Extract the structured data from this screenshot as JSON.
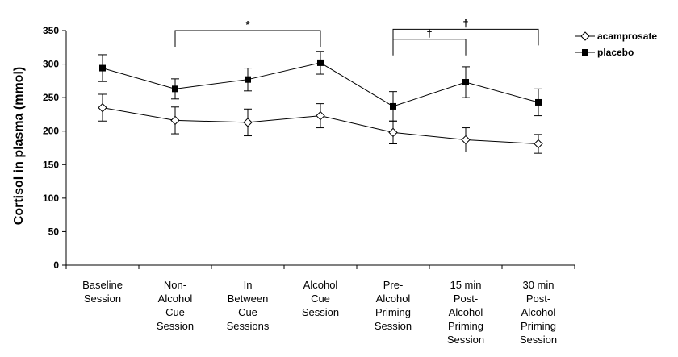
{
  "chart_data": {
    "type": "line",
    "ylabel": "Cortisol in plasma (mmol)",
    "xlabel": "",
    "ylim": [
      0,
      350
    ],
    "yticks": [
      0,
      50,
      100,
      150,
      200,
      250,
      300,
      350
    ],
    "grid": false,
    "legend_position": "top-right",
    "categories": [
      [
        "Baseline",
        "Session"
      ],
      [
        "Non-",
        "Alcohol",
        "Cue",
        "Session"
      ],
      [
        "In",
        "Between",
        "Cue",
        "Sessions"
      ],
      [
        "Alcohol",
        "Cue",
        "Session"
      ],
      [
        "Pre-",
        "Alcohol",
        "Priming",
        "Session"
      ],
      [
        "15 min",
        "Post-",
        "Alcohol",
        "Priming",
        "Session"
      ],
      [
        "30 min",
        "Post-",
        "Alcohol",
        "Priming",
        "Session"
      ]
    ],
    "series": [
      {
        "name": "acamprosate",
        "marker": "open-diamond",
        "values": [
          235,
          216,
          213,
          223,
          198,
          187,
          181
        ],
        "error": [
          20,
          20,
          20,
          18,
          17,
          18,
          14
        ]
      },
      {
        "name": "placebo",
        "marker": "filled-square",
        "values": [
          294,
          263,
          277,
          302,
          237,
          273,
          243
        ],
        "error": [
          20,
          15,
          17,
          17,
          22,
          23,
          20
        ]
      }
    ],
    "annotations": [
      {
        "symbol": "*",
        "from": 1,
        "to": 3,
        "top": 350
      },
      {
        "symbol": "†",
        "from": 4,
        "to": 5,
        "top": 337
      },
      {
        "symbol": "†",
        "from": 4,
        "to": 6,
        "top": 352
      }
    ],
    "colors": {
      "line": "#000000",
      "axis": "#000000"
    }
  }
}
